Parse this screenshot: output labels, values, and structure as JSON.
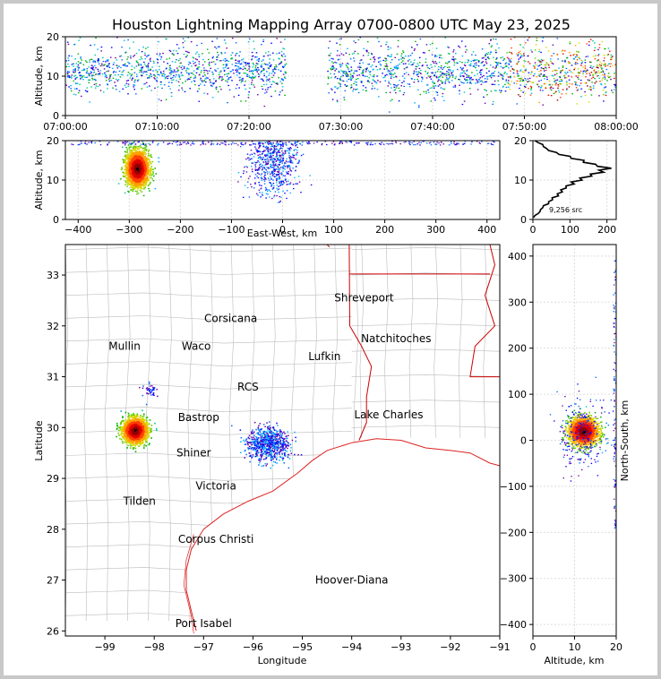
{
  "title": "Houston Lightning Mapping Array 0700-0800 UTC May 23, 2025",
  "colors": {
    "state_border": "#cc0000",
    "county_border": "#bbbbbb",
    "coast": "#dd2222"
  },
  "chart_data": [
    {
      "type": "scatter",
      "panel": "time-altitude",
      "ylabel": "Altitude, km",
      "ylim": [
        0,
        20
      ],
      "yticks": [
        "0",
        "10",
        "20"
      ],
      "xticks": [
        "07:00:00",
        "07:10:00",
        "07:20:00",
        "07:30:00",
        "07:40:00",
        "07:50:00",
        "08:00:00"
      ],
      "xlim_minutes": [
        0,
        60
      ],
      "gap_minutes": [
        24,
        28.5
      ],
      "density_peak_altitude_km": 11
    },
    {
      "type": "scatter",
      "panel": "east-west altitude",
      "xlabel": "East-West, km",
      "ylabel": "Altitude, km",
      "xlim": [
        -425,
        425
      ],
      "ylim": [
        0,
        20
      ],
      "xticks": [
        "−400",
        "−300",
        "−200",
        "−100",
        "0",
        "100",
        "200",
        "300",
        "400"
      ],
      "yticks": [
        "0",
        "10",
        "20"
      ],
      "clusters": [
        {
          "x_center": -285,
          "x_spread": 18,
          "alt_range": [
            5,
            20
          ],
          "alt_center": 13,
          "intensity": "high"
        },
        {
          "x_center": -20,
          "x_spread": 45,
          "alt_range": [
            1,
            20
          ],
          "alt_center": 15,
          "intensity": "low"
        }
      ]
    },
    {
      "type": "line",
      "panel": "altitude histogram",
      "xlim": [
        0,
        225
      ],
      "ylim": [
        0,
        20
      ],
      "xticks": [
        "0",
        "100",
        "200"
      ],
      "yticks": [
        "0",
        "10",
        "20"
      ],
      "annotation": "9,256 src",
      "profile": [
        [
          0.5,
          2
        ],
        [
          1,
          5
        ],
        [
          1.5,
          15
        ],
        [
          2,
          18
        ],
        [
          2.5,
          22
        ],
        [
          3,
          25
        ],
        [
          3.5,
          30
        ],
        [
          4,
          40
        ],
        [
          4.5,
          45
        ],
        [
          5,
          50
        ],
        [
          5.5,
          55
        ],
        [
          6,
          65
        ],
        [
          6.5,
          70
        ],
        [
          7,
          75
        ],
        [
          7.5,
          80
        ],
        [
          8,
          85
        ],
        [
          8.5,
          95
        ],
        [
          9,
          105
        ],
        [
          9.5,
          110
        ],
        [
          10,
          125
        ],
        [
          10.5,
          135
        ],
        [
          11,
          150
        ],
        [
          11.5,
          165
        ],
        [
          12,
          180
        ],
        [
          12.5,
          190
        ],
        [
          13,
          200
        ],
        [
          13.5,
          185
        ],
        [
          14,
          160
        ],
        [
          14.5,
          145
        ],
        [
          15,
          130
        ],
        [
          15.5,
          110
        ],
        [
          16,
          95
        ],
        [
          16.5,
          75
        ],
        [
          17,
          60
        ],
        [
          17.5,
          45
        ],
        [
          18,
          35
        ],
        [
          18.5,
          30
        ],
        [
          19,
          25
        ],
        [
          19.5,
          15
        ],
        [
          20,
          5
        ]
      ]
    },
    {
      "type": "scatter",
      "panel": "plan view",
      "xlabel": "Longitude",
      "ylabel": "Latitude",
      "xlim": [
        -99.8,
        -91.0
      ],
      "ylim": [
        25.9,
        33.6
      ],
      "xticks": [
        "−99",
        "−98",
        "−97",
        "−96",
        "−95",
        "−94",
        "−93",
        "−92",
        "−91"
      ],
      "yticks": [
        "26",
        "27",
        "28",
        "29",
        "30",
        "31",
        "32",
        "33"
      ],
      "clusters": [
        {
          "lon": -98.4,
          "lat": 29.95,
          "spread_lon": 0.22,
          "spread_lat": 0.22,
          "intensity": "high"
        },
        {
          "lon": -95.7,
          "lat": 29.7,
          "spread_lon": 0.4,
          "spread_lat": 0.3,
          "intensity": "low"
        }
      ]
    },
    {
      "type": "scatter",
      "panel": "north-south altitude",
      "xlabel": "Altitude, km",
      "ylabel": "North-South, km",
      "xlim": [
        0,
        20
      ],
      "ylim": [
        -425,
        425
      ],
      "xticks": [
        "0",
        "10",
        "20"
      ],
      "yticks": [
        "−400",
        "−300",
        "−200",
        "−100",
        "0",
        "100",
        "200",
        "300",
        "400"
      ],
      "clusters": [
        {
          "y_center": 20,
          "y_spread": 25,
          "alt_range": [
            6,
            20
          ],
          "alt_center": 12,
          "intensity": "high"
        }
      ]
    }
  ],
  "cities": [
    {
      "name": "Shreveport",
      "lon": -93.75,
      "lat": 32.55,
      "color": "#000000"
    },
    {
      "name": "Corsicana",
      "lon": -96.45,
      "lat": 32.15,
      "color": "#000000"
    },
    {
      "name": "Natchitoches",
      "lon": -93.1,
      "lat": 31.75,
      "color": "#000000"
    },
    {
      "name": "Mullin",
      "lon": -98.6,
      "lat": 31.6,
      "color": "#ff8c3a"
    },
    {
      "name": "Waco",
      "lon": -97.15,
      "lat": 31.6,
      "color": "#000000"
    },
    {
      "name": "Lufkin",
      "lon": -94.55,
      "lat": 31.4,
      "color": "#000000"
    },
    {
      "name": "RCS",
      "lon": -96.1,
      "lat": 30.8,
      "color": "#8a1010"
    },
    {
      "name": "Lake Charles",
      "lon": -93.25,
      "lat": 30.25,
      "color": "#000000"
    },
    {
      "name": "Bastrop",
      "lon": -97.1,
      "lat": 30.2,
      "color": "#000000"
    },
    {
      "name": "Shiner",
      "lon": -97.2,
      "lat": 29.5,
      "color": "#000000"
    },
    {
      "name": "Victoria",
      "lon": -96.75,
      "lat": 28.85,
      "color": "#000000"
    },
    {
      "name": "Tilden",
      "lon": -98.3,
      "lat": 28.55,
      "color": "#000000"
    },
    {
      "name": "Corpus Christi",
      "lon": -96.75,
      "lat": 27.8,
      "color": "#000000"
    },
    {
      "name": "Hoover-Diana",
      "lon": -94.0,
      "lat": 27.0,
      "color": "#2222dd"
    },
    {
      "name": "Port Isabel",
      "lon": -97.0,
      "lat": 26.15,
      "color": "#000000"
    }
  ]
}
